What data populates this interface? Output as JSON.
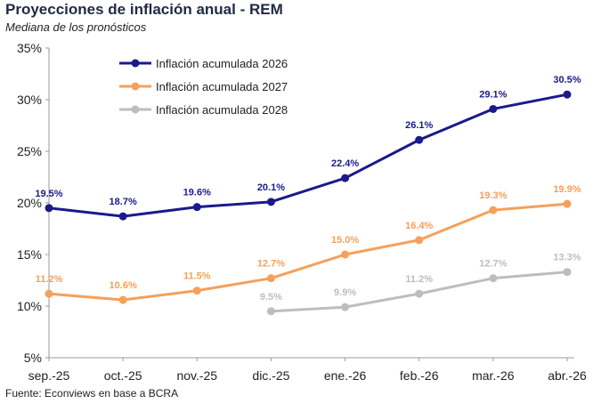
{
  "header": {
    "title": "Proyecciones de inflación anual - REM",
    "subtitle": "Mediana de los pronósticos"
  },
  "footer": {
    "source": "Fuente: Econviews en base a BCRA"
  },
  "chart_data": {
    "type": "line",
    "categories": [
      "sep.-25",
      "oct.-25",
      "nov.-25",
      "dic.-25",
      "ene.-26",
      "feb.-26",
      "mar.-26",
      "abr.-26"
    ],
    "yticks": [
      "5%",
      "10%",
      "15%",
      "20%",
      "25%",
      "30%",
      "35%"
    ],
    "ylim": [
      5,
      35
    ],
    "grid": false,
    "legend_position": "top-left",
    "series": [
      {
        "name": "Inflación acumulada 2026",
        "color": "#1a1a8c",
        "values": [
          19.5,
          18.7,
          19.6,
          20.1,
          22.4,
          26.1,
          29.1,
          30.5
        ],
        "labels": [
          "19.5%",
          "18.7%",
          "19.6%",
          "20.1%",
          "22.4%",
          "26.1%",
          "29.1%",
          "30.5%"
        ]
      },
      {
        "name": "Inflación acumulada 2027",
        "color": "#f5a05a",
        "values": [
          11.2,
          10.6,
          11.5,
          12.7,
          15.0,
          16.4,
          19.3,
          19.9
        ],
        "labels": [
          "11.2%",
          "10.6%",
          "11.5%",
          "12.7%",
          "15.0%",
          "16.4%",
          "19.3%",
          "19.9%"
        ]
      },
      {
        "name": "Inflación acumulada 2028",
        "color": "#bdbdbd",
        "values": [
          null,
          null,
          null,
          9.5,
          9.9,
          11.2,
          12.7,
          13.3
        ],
        "labels": [
          null,
          null,
          null,
          "9.5%",
          "9.9%",
          "11.2%",
          "12.7%",
          "13.3%"
        ]
      }
    ]
  }
}
